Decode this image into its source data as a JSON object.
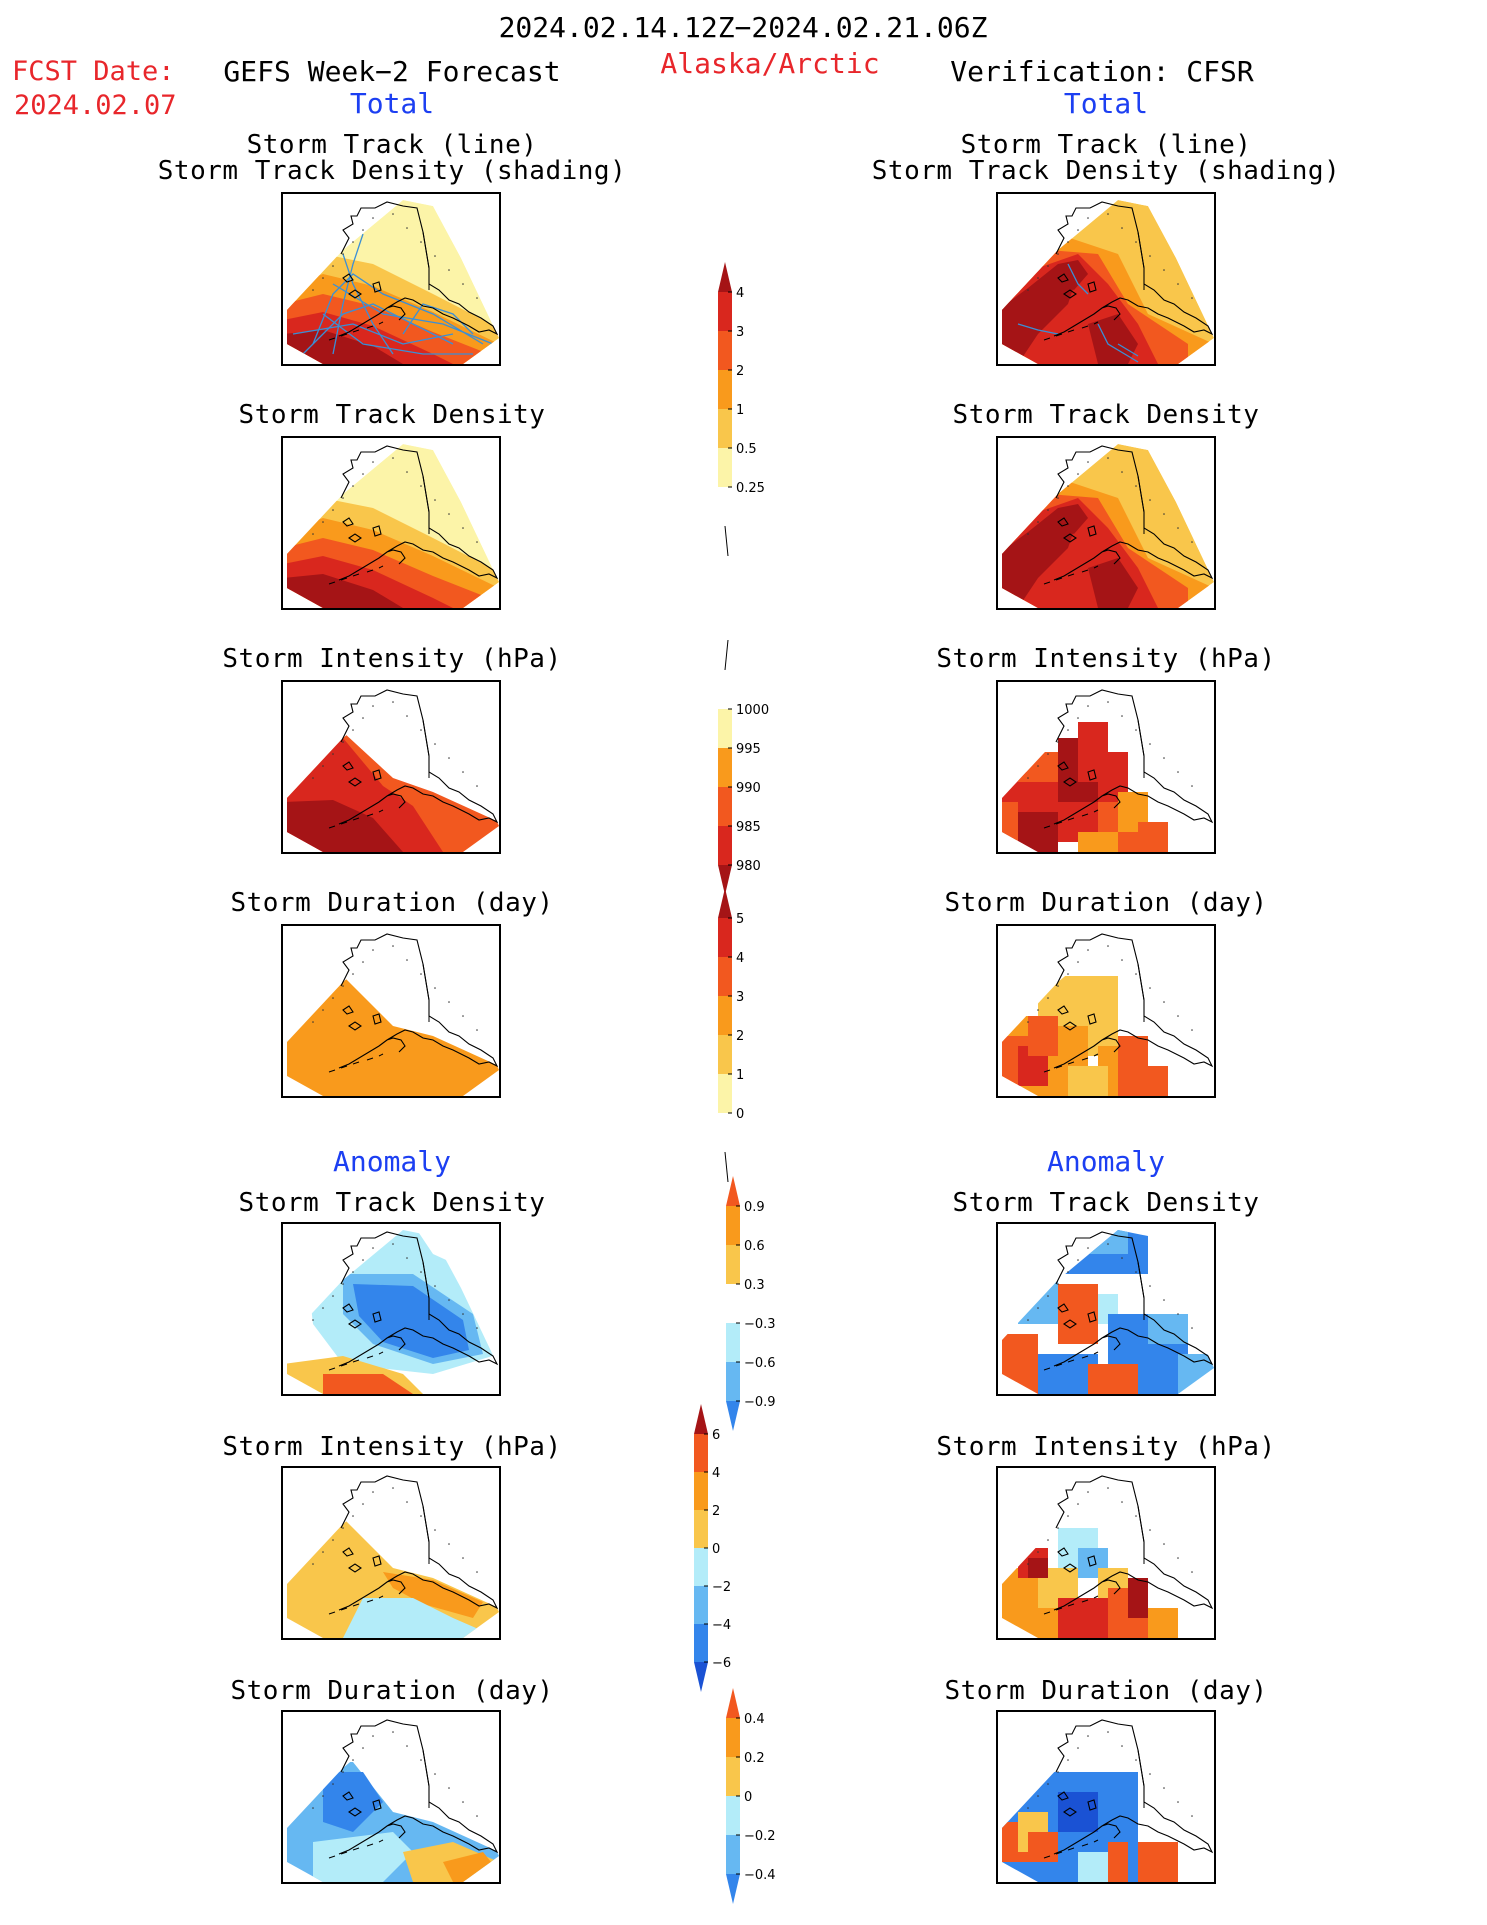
{
  "header": {
    "period": "2024.02.14.12Z−2024.02.21.06Z",
    "fcst_label": "FCST Date:",
    "fcst_date": "2024.02.07",
    "left_title": "GEFS Week−2 Forecast",
    "region": "Alaska/Arctic",
    "right_title": "Verification: CFSR",
    "total_label": "Total",
    "anomaly_label": "Anomaly"
  },
  "panel_titles": {
    "track_line": "Storm Track (line)",
    "track_shading": "Storm Track Density (shading)",
    "density": "Storm Track Density",
    "intensity": "Storm Intensity (hPa)",
    "duration": "Storm Duration (day)"
  },
  "colorbars": {
    "density": [
      "4",
      "3",
      "2",
      "1",
      "0.5",
      "0.25"
    ],
    "intensity": [
      "1000",
      "995",
      "990",
      "985",
      "980"
    ],
    "duration": [
      "5",
      "4",
      "3",
      "2",
      "1",
      "0"
    ],
    "density_anom": [
      "0.9",
      "0.6",
      "0.3",
      "−0.3",
      "−0.6",
      "−0.9"
    ],
    "intensity_anom": [
      "6",
      "4",
      "2",
      "0",
      "−2",
      "−4",
      "−6"
    ],
    "duration_anom": [
      "0.4",
      "0.2",
      "0",
      "−0.2",
      "−0.4"
    ]
  },
  "colors": {
    "title_red": "#e8262b",
    "title_blue": "#1c3ff2",
    "dark_red": "#a51416",
    "red": "#d9271e",
    "orange_red": "#f2581f",
    "orange": "#f99a1c",
    "light_orange": "#f9c64b",
    "pale_yellow": "#fcf4a8",
    "light_blue": "#b3ecf9",
    "mid_blue": "#66b8f2",
    "blue": "#3385eb",
    "dark_blue": "#1a52d4",
    "track_line": "#3a8fd6"
  }
}
